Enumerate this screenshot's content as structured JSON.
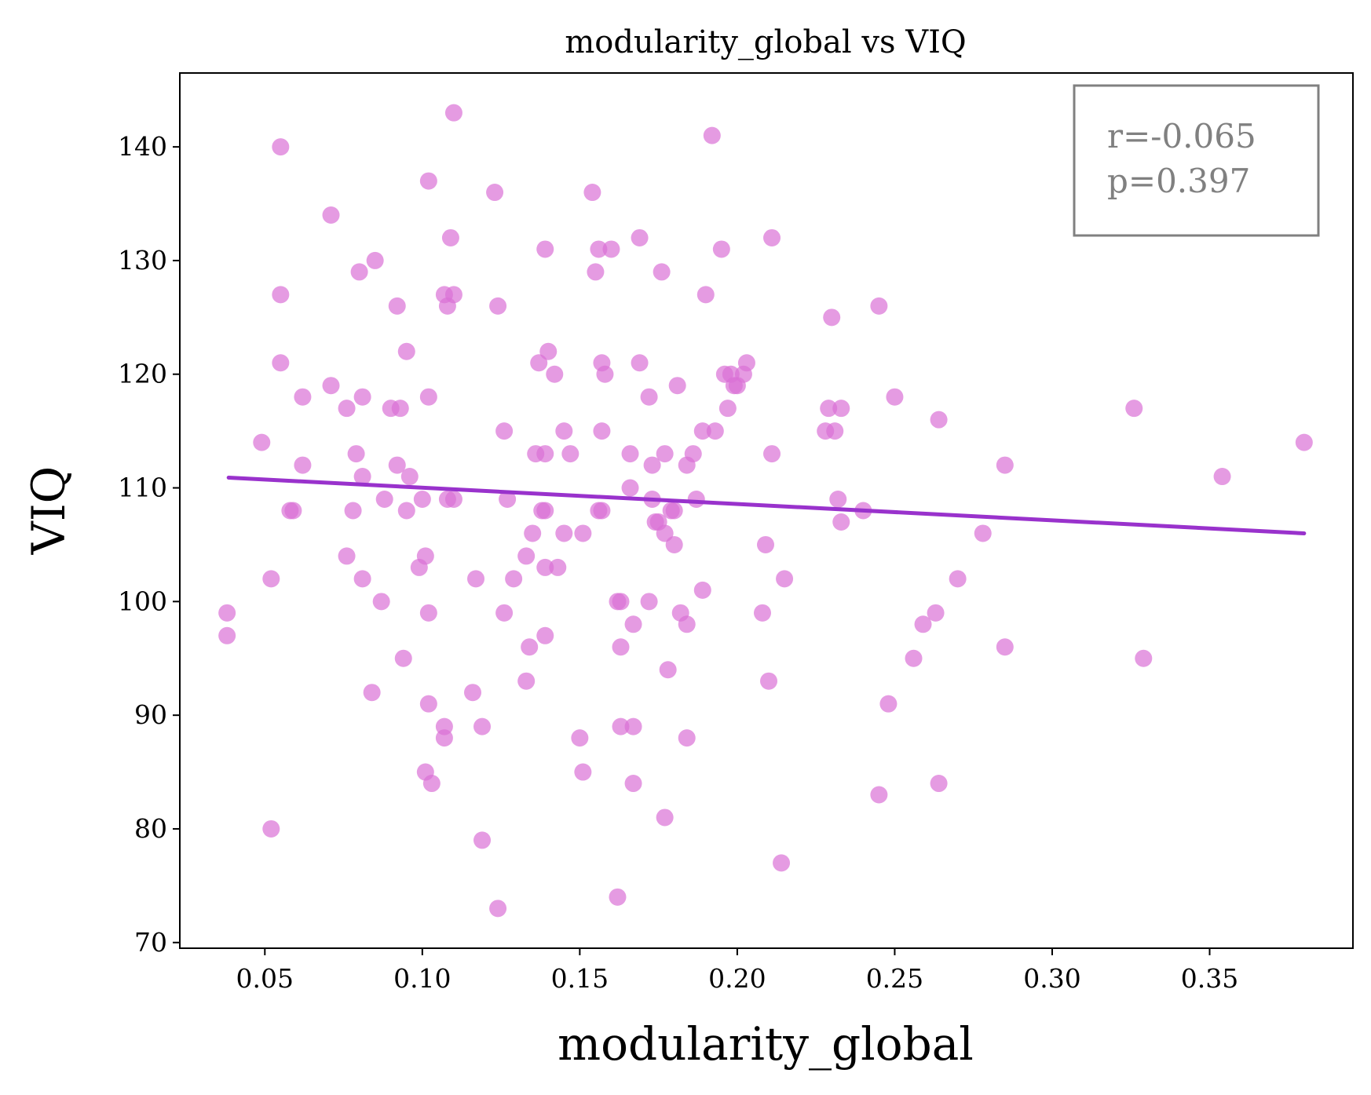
{
  "chart_data": {
    "type": "scatter",
    "title": "modularity_global vs VIQ",
    "xlabel": "modularity_global",
    "ylabel": "VIQ",
    "xlim": [
      0.023,
      0.3955
    ],
    "ylim": [
      69.5,
      146.5
    ],
    "xticks": [
      "0.05",
      "0.10",
      "0.15",
      "0.20",
      "0.25",
      "0.30",
      "0.35"
    ],
    "yticks": [
      "70",
      "80",
      "90",
      "100",
      "110",
      "120",
      "130",
      "140"
    ],
    "grid": false,
    "point_color": "#DA70D6",
    "line_color": "#9932CC",
    "regression": {
      "x": [
        0.0385,
        0.38
      ],
      "y": [
        110.9,
        106.0
      ]
    },
    "annotation": {
      "r": "r=-0.065",
      "p": "p=0.397"
    },
    "points": [
      [
        0.11,
        143
      ],
      [
        0.055,
        140
      ],
      [
        0.192,
        141
      ],
      [
        0.071,
        134
      ],
      [
        0.102,
        137
      ],
      [
        0.123,
        136
      ],
      [
        0.154,
        136
      ],
      [
        0.085,
        130
      ],
      [
        0.08,
        129
      ],
      [
        0.109,
        132
      ],
      [
        0.139,
        131
      ],
      [
        0.156,
        131
      ],
      [
        0.16,
        131
      ],
      [
        0.169,
        132
      ],
      [
        0.195,
        131
      ],
      [
        0.211,
        132
      ],
      [
        0.055,
        127
      ],
      [
        0.092,
        126
      ],
      [
        0.107,
        127
      ],
      [
        0.108,
        126
      ],
      [
        0.11,
        127
      ],
      [
        0.124,
        126
      ],
      [
        0.155,
        129
      ],
      [
        0.176,
        129
      ],
      [
        0.19,
        127
      ],
      [
        0.23,
        125
      ],
      [
        0.245,
        126
      ],
      [
        0.055,
        121
      ],
      [
        0.062,
        118
      ],
      [
        0.071,
        119
      ],
      [
        0.076,
        117
      ],
      [
        0.081,
        118
      ],
      [
        0.09,
        117
      ],
      [
        0.093,
        117
      ],
      [
        0.095,
        122
      ],
      [
        0.102,
        118
      ],
      [
        0.137,
        121
      ],
      [
        0.14,
        122
      ],
      [
        0.142,
        120
      ],
      [
        0.157,
        121
      ],
      [
        0.158,
        120
      ],
      [
        0.169,
        121
      ],
      [
        0.172,
        118
      ],
      [
        0.181,
        119
      ],
      [
        0.196,
        120
      ],
      [
        0.198,
        120
      ],
      [
        0.199,
        119
      ],
      [
        0.2,
        119
      ],
      [
        0.197,
        117
      ],
      [
        0.202,
        120
      ],
      [
        0.203,
        121
      ],
      [
        0.229,
        117
      ],
      [
        0.233,
        117
      ],
      [
        0.25,
        118
      ],
      [
        0.049,
        114
      ],
      [
        0.062,
        112
      ],
      [
        0.079,
        113
      ],
      [
        0.081,
        111
      ],
      [
        0.092,
        112
      ],
      [
        0.096,
        111
      ],
      [
        0.126,
        115
      ],
      [
        0.136,
        113
      ],
      [
        0.139,
        113
      ],
      [
        0.145,
        115
      ],
      [
        0.147,
        113
      ],
      [
        0.157,
        115
      ],
      [
        0.166,
        113
      ],
      [
        0.173,
        112
      ],
      [
        0.177,
        113
      ],
      [
        0.184,
        112
      ],
      [
        0.186,
        113
      ],
      [
        0.189,
        115
      ],
      [
        0.193,
        115
      ],
      [
        0.211,
        113
      ],
      [
        0.228,
        115
      ],
      [
        0.231,
        115
      ],
      [
        0.264,
        116
      ],
      [
        0.285,
        112
      ],
      [
        0.326,
        117
      ],
      [
        0.38,
        114
      ],
      [
        0.354,
        111
      ],
      [
        0.058,
        108
      ],
      [
        0.059,
        108
      ],
      [
        0.078,
        108
      ],
      [
        0.088,
        109
      ],
      [
        0.095,
        108
      ],
      [
        0.1,
        109
      ],
      [
        0.108,
        109
      ],
      [
        0.11,
        109
      ],
      [
        0.127,
        109
      ],
      [
        0.135,
        106
      ],
      [
        0.138,
        108
      ],
      [
        0.139,
        108
      ],
      [
        0.145,
        106
      ],
      [
        0.151,
        106
      ],
      [
        0.156,
        108
      ],
      [
        0.157,
        108
      ],
      [
        0.166,
        110
      ],
      [
        0.173,
        109
      ],
      [
        0.174,
        107
      ],
      [
        0.175,
        107
      ],
      [
        0.177,
        106
      ],
      [
        0.179,
        108
      ],
      [
        0.18,
        108
      ],
      [
        0.187,
        109
      ],
      [
        0.209,
        105
      ],
      [
        0.232,
        109
      ],
      [
        0.233,
        107
      ],
      [
        0.24,
        108
      ],
      [
        0.278,
        106
      ],
      [
        0.18,
        105
      ],
      [
        0.052,
        102
      ],
      [
        0.076,
        104
      ],
      [
        0.081,
        102
      ],
      [
        0.087,
        100
      ],
      [
        0.099,
        103
      ],
      [
        0.101,
        104
      ],
      [
        0.102,
        99
      ],
      [
        0.117,
        102
      ],
      [
        0.126,
        99
      ],
      [
        0.129,
        102
      ],
      [
        0.133,
        104
      ],
      [
        0.139,
        103
      ],
      [
        0.143,
        103
      ],
      [
        0.162,
        100
      ],
      [
        0.163,
        100
      ],
      [
        0.172,
        100
      ],
      [
        0.182,
        99
      ],
      [
        0.189,
        101
      ],
      [
        0.208,
        99
      ],
      [
        0.215,
        102
      ],
      [
        0.263,
        99
      ],
      [
        0.27,
        102
      ],
      [
        0.038,
        99
      ],
      [
        0.038,
        97
      ],
      [
        0.094,
        95
      ],
      [
        0.134,
        96
      ],
      [
        0.139,
        97
      ],
      [
        0.163,
        96
      ],
      [
        0.167,
        98
      ],
      [
        0.178,
        94
      ],
      [
        0.184,
        98
      ],
      [
        0.256,
        95
      ],
      [
        0.259,
        98
      ],
      [
        0.285,
        96
      ],
      [
        0.329,
        95
      ],
      [
        0.084,
        92
      ],
      [
        0.102,
        91
      ],
      [
        0.107,
        89
      ],
      [
        0.107,
        88
      ],
      [
        0.116,
        92
      ],
      [
        0.119,
        89
      ],
      [
        0.133,
        93
      ],
      [
        0.15,
        88
      ],
      [
        0.163,
        89
      ],
      [
        0.167,
        89
      ],
      [
        0.184,
        88
      ],
      [
        0.21,
        93
      ],
      [
        0.248,
        91
      ],
      [
        0.052,
        80
      ],
      [
        0.101,
        85
      ],
      [
        0.103,
        84
      ],
      [
        0.119,
        79
      ],
      [
        0.124,
        73
      ],
      [
        0.151,
        85
      ],
      [
        0.162,
        74
      ],
      [
        0.167,
        84
      ],
      [
        0.177,
        81
      ],
      [
        0.214,
        77
      ],
      [
        0.245,
        83
      ],
      [
        0.264,
        84
      ]
    ]
  }
}
